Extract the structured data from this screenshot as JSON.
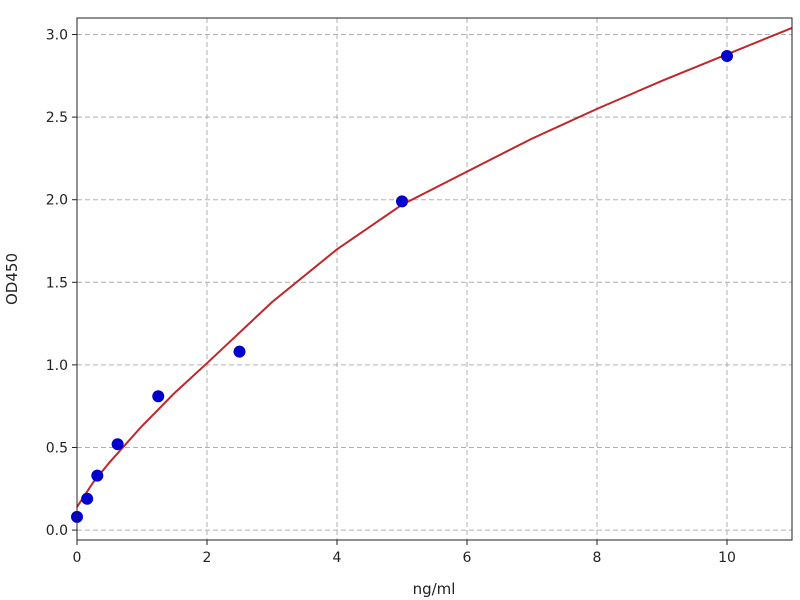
{
  "chart_data": {
    "type": "scatter",
    "title": "",
    "xlabel": "ng/ml",
    "ylabel": "OD450",
    "xlim": [
      0,
      11
    ],
    "ylim": [
      -0.06,
      3.1
    ],
    "grid": true,
    "xticks": [
      "0",
      "2",
      "4",
      "6",
      "8",
      "10"
    ],
    "xtick_values": [
      0,
      2,
      4,
      6,
      8,
      10
    ],
    "yticks": [
      "0.0",
      "0.5",
      "1.0",
      "1.5",
      "2.0",
      "2.5",
      "3.0"
    ],
    "ytick_values": [
      0,
      0.5,
      1.0,
      1.5,
      2.0,
      2.5,
      3.0
    ],
    "points": {
      "x": [
        0,
        0.156,
        0.3125,
        0.625,
        1.25,
        2.5,
        5,
        10
      ],
      "y": [
        0.08,
        0.19,
        0.33,
        0.52,
        0.81,
        1.08,
        1.99,
        2.87
      ],
      "color": "#0000cc"
    },
    "fit_curve": {
      "x": [
        0,
        0.25,
        0.5,
        1,
        1.5,
        2,
        3,
        4,
        5,
        6,
        7,
        8,
        9,
        10,
        11
      ],
      "y": [
        0.14,
        0.29,
        0.41,
        0.63,
        0.83,
        1.01,
        1.38,
        1.7,
        1.97,
        2.17,
        2.37,
        2.55,
        2.72,
        2.88,
        3.04
      ],
      "color": "#c0262a"
    }
  }
}
